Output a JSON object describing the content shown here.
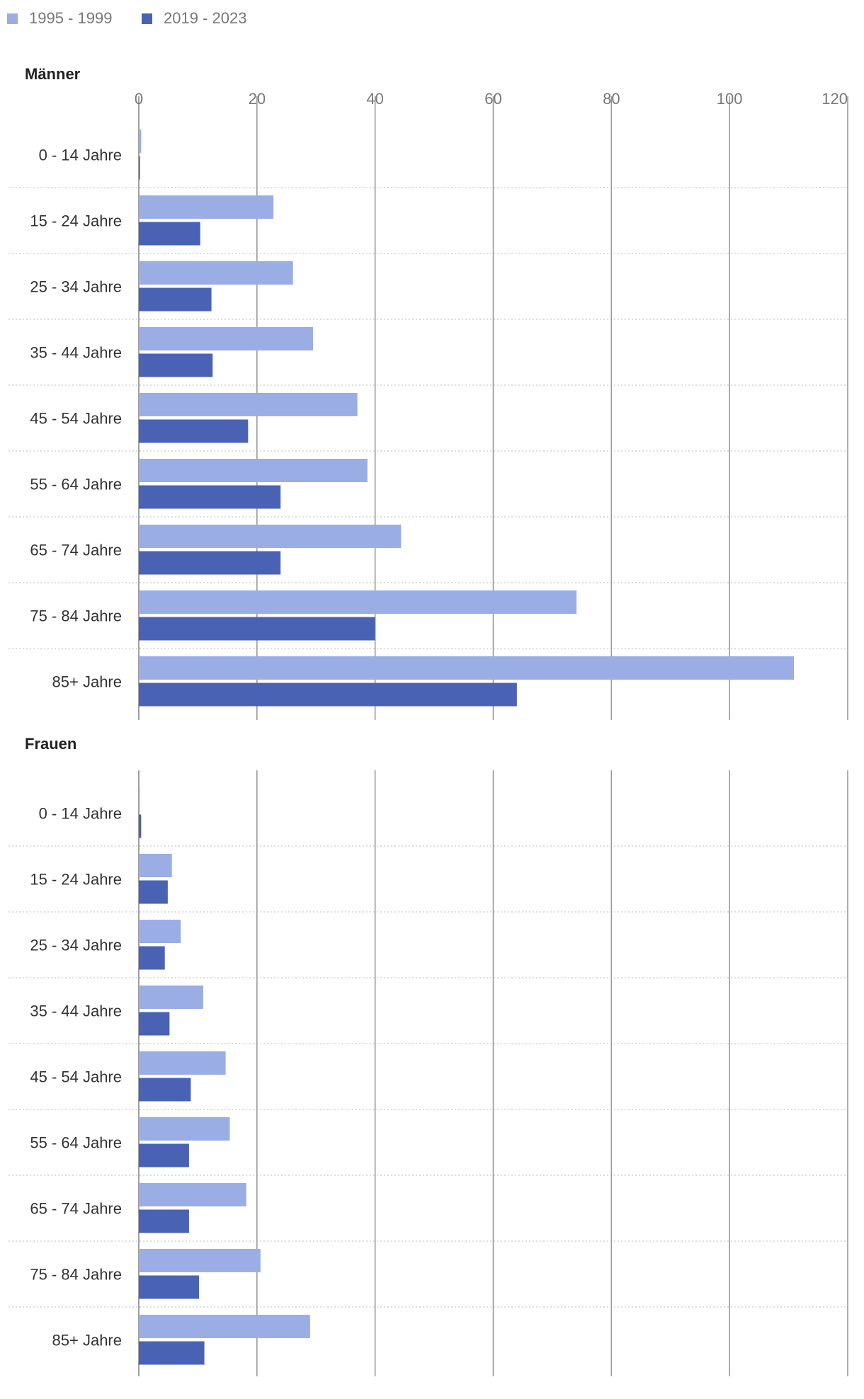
{
  "chart_data": {
    "type": "bar",
    "orientation": "horizontal",
    "legend": {
      "placement": "top-left",
      "entries": [
        {
          "label": "1995 - 1999",
          "color": "#9badE5"
        },
        {
          "label": "2019 - 2023",
          "color": "#4a62b3"
        }
      ]
    },
    "xlim": [
      0,
      120
    ],
    "xticks": [
      0,
      20,
      40,
      60,
      80,
      100,
      120
    ],
    "grid": true,
    "categories": [
      "0 - 14 Jahre",
      "15 - 24 Jahre",
      "25 - 34 Jahre",
      "35 - 44 Jahre",
      "45 - 54 Jahre",
      "55 - 64 Jahre",
      "65 - 74 Jahre",
      "75 - 84 Jahre",
      "85+ Jahre"
    ],
    "panels": [
      {
        "title": "Männer",
        "series": [
          {
            "name": "1995 - 1999",
            "values": [
              0.4,
              22.8,
              26.1,
              29.5,
              37.0,
              38.7,
              44.4,
              74.1,
              110.9
            ]
          },
          {
            "name": "2019 - 2023",
            "values": [
              0.2,
              10.4,
              12.3,
              12.5,
              18.5,
              24.0,
              24.0,
              40.0,
              64.0
            ]
          }
        ]
      },
      {
        "title": "Frauen",
        "series": [
          {
            "name": "1995 - 1999",
            "values": [
              0.1,
              5.6,
              7.1,
              10.9,
              14.7,
              15.4,
              18.2,
              20.6,
              29.0
            ]
          },
          {
            "name": "2019 - 2023",
            "values": [
              0.4,
              4.9,
              4.4,
              5.2,
              8.8,
              8.5,
              8.5,
              10.2,
              11.1
            ]
          }
        ]
      }
    ]
  }
}
